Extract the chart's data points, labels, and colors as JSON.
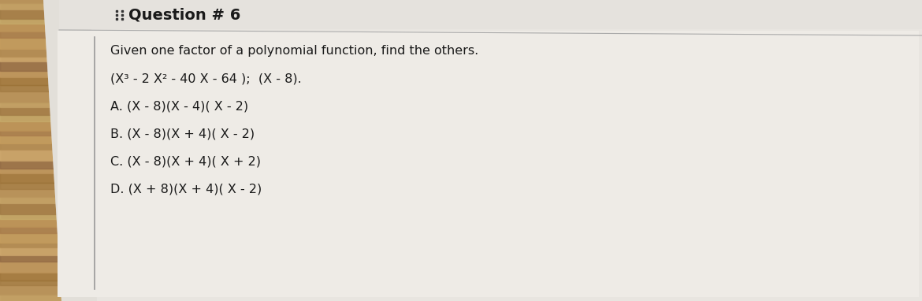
{
  "title": "Question # 6",
  "subtitle": "Given one factor of a polynomial function, find the others.",
  "problem": "(X³ - 2 X² - 40 X - 64 );  (X - 8).",
  "options": [
    "A. (X - 8)(X - 4)( X - 2)",
    "B. (X - 8)(X + 4)( X - 2)",
    "C. (X - 8)(X + 4)( X + 2)",
    "D. (X + 8)(X + 4)( X - 2)"
  ],
  "wood_color_light": "#c9a96e",
  "wood_color_dark": "#8b6340",
  "wood_stripe_colors": [
    "#c9a86c",
    "#b8935a",
    "#a07840",
    "#c2985e",
    "#8b6340",
    "#d4ad72",
    "#b08950"
  ],
  "page_color": "#e8e5e0",
  "page_color2": "#dddad4",
  "inner_color": "#eeebe6",
  "title_color": "#1a1a1a",
  "text_color": "#1a1a1a",
  "line_color": "#888888",
  "dot_color": "#333333",
  "title_fontsize": 14,
  "text_fontsize": 11.5,
  "option_fontsize": 11.5
}
